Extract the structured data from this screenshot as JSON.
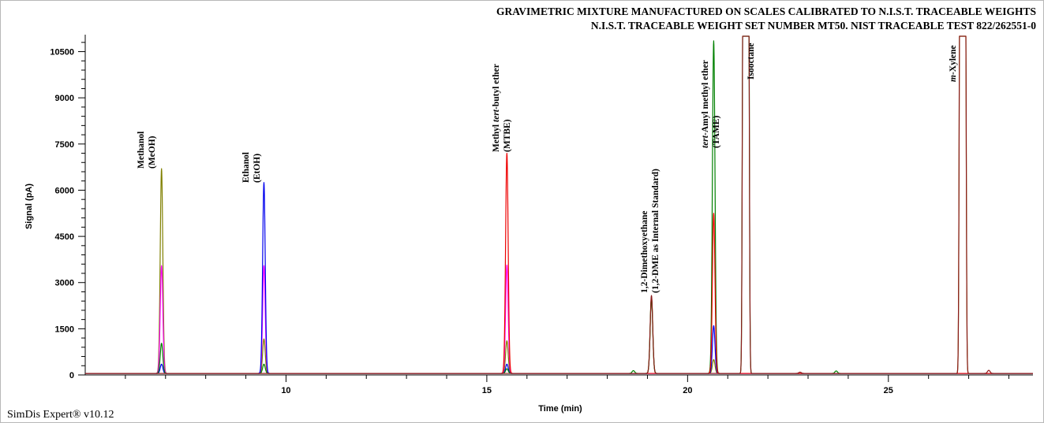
{
  "chart_data": {
    "type": "line",
    "title_lines": [
      "GRAVIMETRIC MIXTURE MANUFACTURED ON SCALES CALIBRATED TO N.I.S.T. TRACEABLE WEIGHTS",
      "N.I.S.T. TRACEABLE WEIGHT SET NUMBER MT50. NIST TRACEABLE TEST 822/262551-0"
    ],
    "xlabel": "Time (min)",
    "ylabel": "Signal (pA)",
    "xlim": [
      5.0,
      28.6
    ],
    "ylim": [
      0,
      11000
    ],
    "x_ticks": [
      10,
      15,
      20,
      25
    ],
    "y_ticks": [
      0,
      1500,
      3000,
      4500,
      6000,
      7500,
      9000,
      10500
    ],
    "grid": false,
    "baseline": 50,
    "series_colors": {
      "olive": "#808000",
      "magenta": "#ff00ff",
      "blue": "#0000ee",
      "green": "#008000",
      "red": "#ee0000",
      "brown": "#8b1a1a"
    },
    "peaks": [
      {
        "time": 6.9,
        "heights": {
          "olive": 6650,
          "magenta": 3500,
          "green": 980,
          "blue": 300
        }
      },
      {
        "time": 9.45,
        "heights": {
          "blue": 6200,
          "magenta": 3500,
          "olive": 1120,
          "green": 300
        }
      },
      {
        "time": 15.5,
        "heights": {
          "red": 7150,
          "magenta": 3520,
          "olive": 1060,
          "blue": 300,
          "green": 150
        }
      },
      {
        "time": 18.65,
        "heights": {
          "green": 90
        }
      },
      {
        "time": 19.1,
        "heights": {
          "brown": 2530,
          "olive": 2480,
          "green": 2450
        }
      },
      {
        "time": 20.65,
        "heights": {
          "green": 10800,
          "red": 5200,
          "blue": 1550,
          "olive": 450
        }
      },
      {
        "time": 21.45,
        "heights": {
          "brown": 11000,
          "green": 11000
        },
        "flat_top": true
      },
      {
        "time": 22.8,
        "heights": {
          "brown": 40
        }
      },
      {
        "time": 23.7,
        "heights": {
          "green": 80
        }
      },
      {
        "time": 26.85,
        "heights": {
          "brown": 11000,
          "olive": 11000
        },
        "flat_top": true
      },
      {
        "time": 27.5,
        "heights": {
          "brown": 100
        }
      }
    ],
    "annotations": [
      {
        "id": "methanol",
        "time": 6.85,
        "lines": [
          "Methanol",
          "(MeOH)"
        ]
      },
      {
        "id": "ethanol",
        "time": 9.4,
        "lines": [
          "Ethanol",
          "(EtOH)"
        ]
      },
      {
        "id": "mtbe",
        "time": 15.45,
        "lines": [
          "Methyl tert-butyl ether",
          "(MTBE)"
        ]
      },
      {
        "id": "dme",
        "time": 19.1,
        "lines": [
          "1,2-Dimethoxyethane",
          "(1,2-DME as Internal Standard)"
        ]
      },
      {
        "id": "tame",
        "time": 20.6,
        "lines": [
          "tert-Amyl methyl ether",
          "(TAME)"
        ]
      },
      {
        "id": "isooctane",
        "time": 21.9,
        "lines": [
          "Isooctane"
        ]
      },
      {
        "id": "mxylene",
        "time": 26.65,
        "lines": [
          "m-Xylene"
        ]
      }
    ]
  },
  "footer": {
    "software": "SimDis Expert® v10.12"
  }
}
